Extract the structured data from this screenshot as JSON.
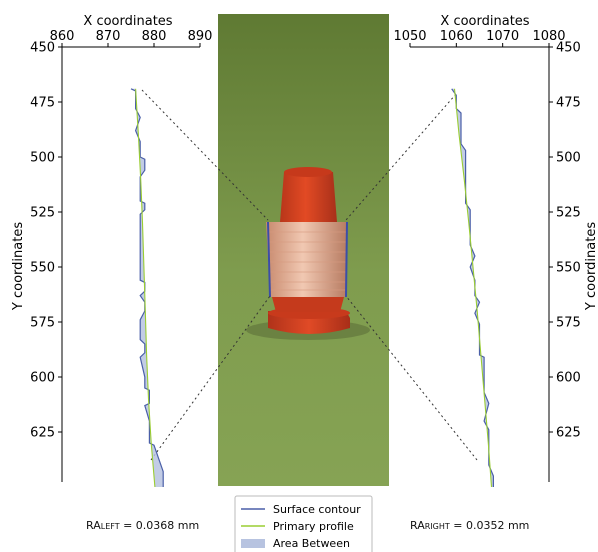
{
  "chart_data": [
    {
      "type": "line",
      "panel": "left",
      "xlabel": "X coordinates",
      "ylabel": "Y coordinates",
      "xlim": [
        860,
        890
      ],
      "ylim": [
        450,
        650
      ],
      "y_inverted": true,
      "x_ticks": [
        860,
        870,
        880,
        890
      ],
      "y_ticks": [
        450,
        475,
        500,
        525,
        550,
        575,
        600,
        625
      ],
      "series": [
        {
          "name": "Surface contour",
          "color": "#4a5fa8",
          "points": [
            [
              875,
              469
            ],
            [
              876,
              470
            ],
            [
              876,
              474
            ],
            [
              876,
              478
            ],
            [
              877,
              482
            ],
            [
              876,
              488
            ],
            [
              877,
              493
            ],
            [
              877,
              500
            ],
            [
              878,
              501
            ],
            [
              878,
              506
            ],
            [
              877,
              509
            ],
            [
              877,
              520
            ],
            [
              878,
              521
            ],
            [
              878,
              524
            ],
            [
              877,
              526
            ],
            [
              877,
              540
            ],
            [
              877,
              548
            ],
            [
              877,
              556
            ],
            [
              878,
              557
            ],
            [
              878,
              561
            ],
            [
              877,
              563
            ],
            [
              878,
              566
            ],
            [
              878,
              570
            ],
            [
              877,
              574
            ],
            [
              877,
              583
            ],
            [
              878,
              585
            ],
            [
              878,
              589
            ],
            [
              877,
              591
            ],
            [
              878,
              600
            ],
            [
              878,
              605
            ],
            [
              879,
              606
            ],
            [
              879,
              612
            ],
            [
              878,
              613
            ],
            [
              879,
              620
            ],
            [
              879,
              630
            ],
            [
              880,
              631
            ],
            [
              881,
              637
            ],
            [
              882,
              643
            ],
            [
              882,
              650
            ]
          ]
        },
        {
          "name": "Primary profile",
          "color": "#9acd32",
          "points": [
            [
              876,
              469
            ],
            [
              876.6,
              490
            ],
            [
              877.1,
              510
            ],
            [
              877.5,
              530
            ],
            [
              877.8,
              550
            ],
            [
              878.1,
              570
            ],
            [
              878.4,
              590
            ],
            [
              878.8,
              610
            ],
            [
              879.4,
              630
            ],
            [
              880.2,
              650
            ]
          ]
        }
      ],
      "area_between": {
        "name": "Area Between",
        "color": "#b7c3e0"
      }
    },
    {
      "type": "line",
      "panel": "right",
      "xlabel": "X coordinates",
      "ylabel": "Y coordinates",
      "xlim": [
        1050,
        1080
      ],
      "ylim": [
        450,
        650
      ],
      "y_inverted": true,
      "x_ticks": [
        1050,
        1060,
        1070,
        1080
      ],
      "y_ticks": [
        450,
        475,
        500,
        525,
        550,
        575,
        600,
        625
      ],
      "series": [
        {
          "name": "Surface contour",
          "color": "#4a5fa8",
          "points": [
            [
              1059,
              469
            ],
            [
              1060,
              472
            ],
            [
              1060,
              478
            ],
            [
              1061,
              480
            ],
            [
              1061,
              488
            ],
            [
              1061,
              494
            ],
            [
              1062,
              497
            ],
            [
              1062,
              505
            ],
            [
              1062,
              514
            ],
            [
              1062,
              521
            ],
            [
              1063,
              524
            ],
            [
              1063,
              530
            ],
            [
              1063,
              540
            ],
            [
              1064,
              545
            ],
            [
              1063,
              550
            ],
            [
              1064,
              556
            ],
            [
              1064,
              563
            ],
            [
              1065,
              566
            ],
            [
              1064,
              571
            ],
            [
              1065,
              576
            ],
            [
              1065,
              585
            ],
            [
              1065,
              590
            ],
            [
              1066,
              591
            ],
            [
              1066,
              600
            ],
            [
              1066,
              607
            ],
            [
              1067,
              612
            ],
            [
              1066,
              620
            ],
            [
              1067,
              624
            ],
            [
              1067,
              630
            ],
            [
              1067,
              640
            ],
            [
              1068,
              645
            ],
            [
              1068,
              650
            ]
          ]
        },
        {
          "name": "Primary profile",
          "color": "#9acd32",
          "points": [
            [
              1059.6,
              469
            ],
            [
              1060.6,
              490
            ],
            [
              1061.7,
              510
            ],
            [
              1062.7,
              530
            ],
            [
              1063.6,
              550
            ],
            [
              1064.5,
              570
            ],
            [
              1065.3,
              590
            ],
            [
              1066.1,
              610
            ],
            [
              1066.9,
              630
            ],
            [
              1067.6,
              650
            ]
          ]
        }
      ],
      "area_between": {
        "name": "Area Between",
        "color": "#b7c3e0"
      }
    }
  ],
  "legend": {
    "items": [
      {
        "label": "Surface contour",
        "kind": "line",
        "color": "#4a5fa8"
      },
      {
        "label": "Primary profile",
        "kind": "line",
        "color": "#9acd32"
      },
      {
        "label": "Area Between",
        "kind": "patch",
        "color": "#b7c3e0"
      }
    ]
  },
  "ra": {
    "left": {
      "prefix": "RA",
      "sub": "LEFT",
      "value": "= 0.0368 mm"
    },
    "right": {
      "prefix": "RA",
      "sub": "RIGHT",
      "value": "= 0.0352 mm"
    }
  },
  "photo": {
    "description_colors": {
      "background": "#7a9a4a",
      "part": "#d8421e",
      "band": "#e9b9a2"
    }
  }
}
